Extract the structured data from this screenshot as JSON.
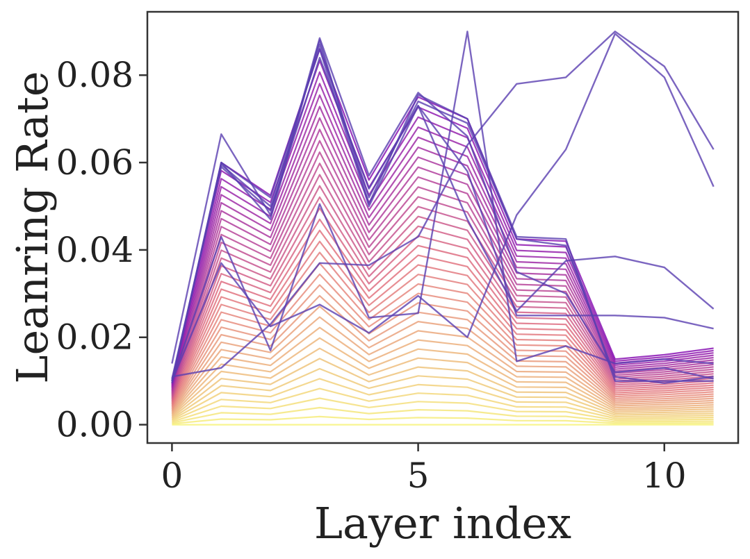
{
  "chart_data": {
    "type": "line",
    "title": "",
    "xlabel": "Layer index",
    "ylabel": "Leanring Rate",
    "xlim": [
      -0.5,
      11.5
    ],
    "ylim": [
      -0.0042,
      0.0945
    ],
    "xticks": [
      0,
      5,
      10
    ],
    "xtick_labels": [
      "0",
      "5",
      "10"
    ],
    "yticks": [
      0.0,
      0.02,
      0.04,
      0.06,
      0.08
    ],
    "ytick_labels": [
      "0.00",
      "0.02",
      "0.04",
      "0.06",
      "0.08"
    ],
    "grid": false,
    "legend": "none",
    "x": [
      0,
      1,
      2,
      3,
      4,
      5,
      6,
      7,
      8,
      9,
      10,
      11
    ],
    "gradient_series": {
      "count": 36,
      "color_start": "#f7f37c",
      "color_end": "#8a16b4",
      "shape": [
        0.0095,
        0.06,
        0.0525,
        0.086,
        0.056,
        0.075,
        0.07,
        0.0425,
        0.042,
        0.015,
        0.016,
        0.0175
      ]
    },
    "series": [
      {
        "values": [
          0.0095,
          0.06,
          0.047,
          0.088,
          0.0505,
          0.0755,
          0.07,
          0.043,
          0.0425,
          0.01,
          0.01,
          0.01
        ]
      },
      {
        "values": [
          0.01,
          0.0595,
          0.05,
          0.087,
          0.052,
          0.074,
          0.069,
          0.0425,
          0.041,
          0.011,
          0.0095,
          0.011
        ]
      },
      {
        "values": [
          0.014,
          0.0665,
          0.048,
          0.0885,
          0.057,
          0.076,
          0.066,
          0.035,
          0.03,
          0.012,
          0.013,
          0.0105
        ]
      },
      {
        "values": [
          0.0105,
          0.059,
          0.049,
          0.084,
          0.054,
          0.073,
          0.058,
          0.025,
          0.025,
          0.025,
          0.0245,
          0.022
        ]
      },
      {
        "values": [
          0.01,
          0.043,
          0.017,
          0.0505,
          0.0245,
          0.0255,
          0.09,
          0.0145,
          0.018,
          0.014,
          0.015,
          0.014
        ]
      },
      {
        "values": [
          0.01,
          0.037,
          0.0225,
          0.0275,
          0.021,
          0.0295,
          0.02,
          0.048,
          0.063,
          0.0895,
          0.0795,
          0.0545
        ]
      },
      {
        "values": [
          0.011,
          0.013,
          0.023,
          0.037,
          0.0365,
          0.043,
          0.064,
          0.078,
          0.0795,
          0.09,
          0.082,
          0.063
        ]
      },
      {
        "values": [
          0.01,
          0.06,
          0.052,
          0.086,
          0.05,
          0.073,
          0.047,
          0.026,
          0.0375,
          0.0385,
          0.036,
          0.0265
        ]
      }
    ],
    "series_color": "#5a3fb0"
  }
}
